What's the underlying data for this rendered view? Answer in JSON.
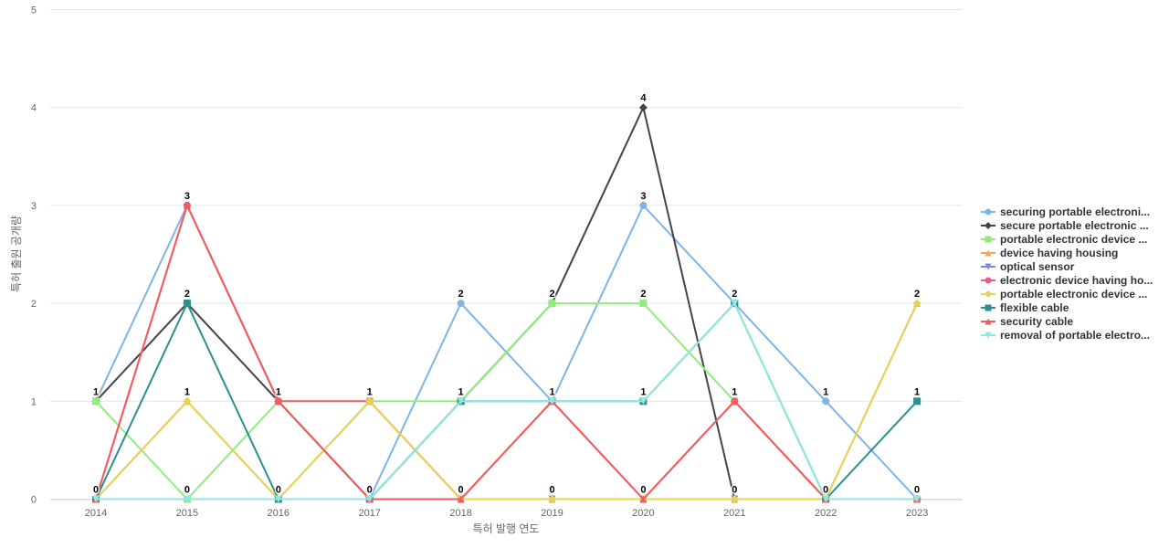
{
  "chart_data": {
    "type": "line",
    "title": "",
    "xlabel": "특허 발행 연도",
    "ylabel": "특허 출원 공개량",
    "x": [
      "2014",
      "2015",
      "2016",
      "2017",
      "2018",
      "2019",
      "2020",
      "2021",
      "2022",
      "2023"
    ],
    "ylim": [
      0,
      5
    ],
    "yticks": [
      0,
      1,
      2,
      3,
      4,
      5
    ],
    "grid": true,
    "legend_position": "right",
    "series": [
      {
        "name": "securing portable electroni...",
        "color": "#7eb4e8",
        "marker": "circle",
        "values": [
          1,
          3,
          1,
          0,
          2,
          1,
          3,
          2,
          1,
          0
        ]
      },
      {
        "name": "secure portable electronic ...",
        "color": "#434348",
        "marker": "diamond",
        "values": [
          1,
          2,
          1,
          0,
          1,
          2,
          4,
          0,
          0,
          0
        ]
      },
      {
        "name": "portable electronic device ...",
        "color": "#90ed7d",
        "marker": "square",
        "values": [
          1,
          0,
          1,
          1,
          1,
          2,
          2,
          1,
          0,
          0
        ]
      },
      {
        "name": "device having housing",
        "color": "#f7a35c",
        "marker": "triangle",
        "values": [
          0,
          1,
          0,
          1,
          0,
          0,
          0,
          0,
          0,
          2
        ]
      },
      {
        "name": "optical sensor",
        "color": "#8085e9",
        "marker": "triangle-down",
        "values": [
          0,
          0,
          0,
          0,
          0,
          0,
          0,
          0,
          0,
          0
        ]
      },
      {
        "name": "electronic device having ho...",
        "color": "#f15c80",
        "marker": "circle",
        "values": [
          0,
          3,
          1,
          1,
          0,
          1,
          0,
          1,
          0,
          0
        ]
      },
      {
        "name": "portable electronic device ...",
        "color": "#e4d354",
        "marker": "diamond",
        "values": [
          0,
          1,
          0,
          1,
          0,
          0,
          0,
          0,
          0,
          2
        ]
      },
      {
        "name": "flexible cable",
        "color": "#2b908f",
        "marker": "square",
        "values": [
          0,
          2,
          0,
          0,
          1,
          1,
          1,
          2,
          0,
          1
        ]
      },
      {
        "name": "security cable",
        "color": "#f45b5b",
        "marker": "triangle",
        "values": [
          0,
          3,
          1,
          0,
          0,
          1,
          0,
          1,
          0,
          0
        ]
      },
      {
        "name": "removal of portable electro...",
        "color": "#91e8e1",
        "marker": "triangle-down",
        "values": [
          0,
          0,
          0,
          0,
          1,
          1,
          1,
          2,
          0,
          0
        ]
      }
    ],
    "data_labels": [
      {
        "x": "2014",
        "value": 1
      },
      {
        "x": "2014",
        "value": 0
      },
      {
        "x": "2015",
        "value": 3
      },
      {
        "x": "2015",
        "value": 2
      },
      {
        "x": "2015",
        "value": 1
      },
      {
        "x": "2015",
        "value": 0
      },
      {
        "x": "2016",
        "value": 1
      },
      {
        "x": "2016",
        "value": 0
      },
      {
        "x": "2017",
        "value": 1
      },
      {
        "x": "2017",
        "value": 0
      },
      {
        "x": "2018",
        "value": 2
      },
      {
        "x": "2018",
        "value": 1
      },
      {
        "x": "2018",
        "value": 0
      },
      {
        "x": "2019",
        "value": 2
      },
      {
        "x": "2019",
        "value": 1
      },
      {
        "x": "2019",
        "value": 0
      },
      {
        "x": "2020",
        "value": 4
      },
      {
        "x": "2020",
        "value": 3
      },
      {
        "x": "2020",
        "value": 2
      },
      {
        "x": "2020",
        "value": 1
      },
      {
        "x": "2020",
        "value": 0
      },
      {
        "x": "2021",
        "value": 2
      },
      {
        "x": "2021",
        "value": 1
      },
      {
        "x": "2021",
        "value": 0
      },
      {
        "x": "2022",
        "value": 1
      },
      {
        "x": "2022",
        "value": 0
      },
      {
        "x": "2023",
        "value": 2
      },
      {
        "x": "2023",
        "value": 1
      },
      {
        "x": "2023",
        "value": 0
      }
    ]
  }
}
